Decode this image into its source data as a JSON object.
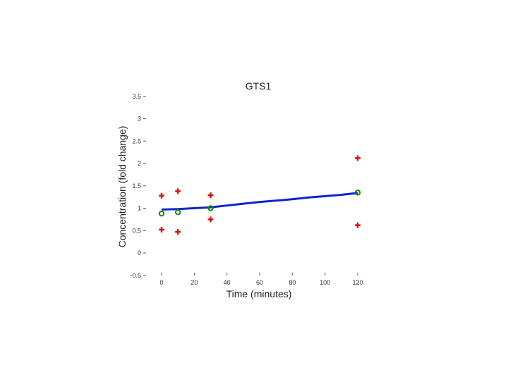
{
  "chart_data": {
    "type": "scatter",
    "title": "GTS1",
    "xlabel": "Time (minutes)",
    "ylabel": "Concentration (fold change)",
    "xlim": [
      -2,
      130
    ],
    "ylim": [
      -0.5,
      3.5
    ],
    "xticks": [
      0,
      20,
      40,
      60,
      80,
      100,
      120
    ],
    "yticks": [
      -0.5,
      0,
      0.5,
      1,
      1.5,
      2,
      2.5,
      3,
      3.5
    ],
    "xtick_labels": [
      "0",
      "20",
      "40",
      "60",
      "80",
      "100",
      "120"
    ],
    "ytick_labels": [
      "-0.5",
      "0",
      "0.5",
      "1",
      "1.5",
      "2",
      "2.5",
      "3",
      "3.5"
    ],
    "grid": false,
    "series": [
      {
        "marker": "plus",
        "color": "#dd1111",
        "points": [
          {
            "x": 0,
            "y": 1.28
          },
          {
            "x": 0,
            "y": 0.52
          },
          {
            "x": 10,
            "y": 1.38
          },
          {
            "x": 10,
            "y": 0.47
          },
          {
            "x": 30,
            "y": 1.29
          },
          {
            "x": 30,
            "y": 0.75
          },
          {
            "x": 120,
            "y": 2.12
          },
          {
            "x": 120,
            "y": 0.62
          }
        ]
      },
      {
        "marker": "circle",
        "color": "#118811",
        "points": [
          {
            "x": 0,
            "y": 0.88
          },
          {
            "x": 10,
            "y": 0.91
          },
          {
            "x": 30,
            "y": 1.0
          },
          {
            "x": 120,
            "y": 1.35
          }
        ]
      },
      {
        "marker": "line",
        "color": "#1122cc",
        "points": [
          {
            "x": 0,
            "y": 0.97
          },
          {
            "x": 10,
            "y": 0.98
          },
          {
            "x": 20,
            "y": 1.0
          },
          {
            "x": 30,
            "y": 1.02
          },
          {
            "x": 40,
            "y": 1.06
          },
          {
            "x": 50,
            "y": 1.1
          },
          {
            "x": 60,
            "y": 1.14
          },
          {
            "x": 70,
            "y": 1.17
          },
          {
            "x": 80,
            "y": 1.2
          },
          {
            "x": 90,
            "y": 1.24
          },
          {
            "x": 100,
            "y": 1.27
          },
          {
            "x": 110,
            "y": 1.3
          },
          {
            "x": 120,
            "y": 1.34
          }
        ]
      }
    ]
  }
}
